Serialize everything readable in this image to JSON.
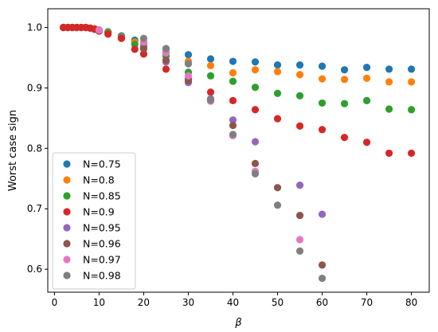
{
  "chart_data": {
    "type": "scatter",
    "xlabel": "β",
    "ylabel": "Worst case sign",
    "xlim": [
      -1.5,
      84
    ],
    "ylim": [
      0.562,
      1.031
    ],
    "x_ticks": [
      0,
      10,
      20,
      30,
      40,
      50,
      60,
      70,
      80
    ],
    "y_ticks": [
      0.6,
      0.7,
      0.8,
      0.9,
      1.0
    ],
    "x_tick_labels": [
      "0",
      "10",
      "20",
      "30",
      "40",
      "50",
      "60",
      "70",
      "80"
    ],
    "y_tick_labels": [
      "0.6",
      "0.7",
      "0.8",
      "0.9",
      "1.0"
    ],
    "legend_position": "lower-left",
    "grid": false,
    "series": [
      {
        "name": "N=0.75",
        "color": "#1f77b4",
        "points": [
          [
            2,
            1.0
          ],
          [
            3,
            1.0
          ],
          [
            4,
            1.0
          ],
          [
            5,
            1.0
          ],
          [
            6,
            1.0
          ],
          [
            7,
            1.0
          ],
          [
            8,
            0.999
          ],
          [
            9,
            0.998
          ],
          [
            10,
            0.996
          ],
          [
            12,
            0.993
          ],
          [
            15,
            0.986
          ],
          [
            18,
            0.979
          ],
          [
            20,
            0.975
          ],
          [
            25,
            0.965
          ],
          [
            30,
            0.955
          ],
          [
            35,
            0.948
          ],
          [
            40,
            0.944
          ],
          [
            45,
            0.943
          ],
          [
            50,
            0.938
          ],
          [
            55,
            0.938
          ],
          [
            60,
            0.936
          ],
          [
            65,
            0.93
          ],
          [
            70,
            0.934
          ],
          [
            75,
            0.931
          ],
          [
            80,
            0.931
          ]
        ]
      },
      {
        "name": "N=0.8",
        "color": "#ff7f0e",
        "points": [
          [
            2,
            1.0
          ],
          [
            3,
            1.0
          ],
          [
            4,
            1.0
          ],
          [
            5,
            1.0
          ],
          [
            6,
            1.0
          ],
          [
            7,
            1.0
          ],
          [
            8,
            0.999
          ],
          [
            9,
            0.998
          ],
          [
            10,
            0.995
          ],
          [
            12,
            0.992
          ],
          [
            15,
            0.984
          ],
          [
            18,
            0.976
          ],
          [
            20,
            0.971
          ],
          [
            25,
            0.959
          ],
          [
            30,
            0.944
          ],
          [
            35,
            0.937
          ],
          [
            40,
            0.925
          ],
          [
            45,
            0.93
          ],
          [
            50,
            0.927
          ],
          [
            55,
            0.922
          ],
          [
            60,
            0.915
          ],
          [
            65,
            0.914
          ],
          [
            70,
            0.916
          ],
          [
            75,
            0.91
          ],
          [
            80,
            0.91
          ]
        ]
      },
      {
        "name": "N=0.85",
        "color": "#2ca02c",
        "points": [
          [
            2,
            1.0
          ],
          [
            3,
            1.0
          ],
          [
            4,
            1.0
          ],
          [
            5,
            1.0
          ],
          [
            6,
            1.0
          ],
          [
            7,
            1.0
          ],
          [
            8,
            0.999
          ],
          [
            9,
            0.997
          ],
          [
            10,
            0.995
          ],
          [
            12,
            0.991
          ],
          [
            15,
            0.983
          ],
          [
            18,
            0.972
          ],
          [
            20,
            0.966
          ],
          [
            25,
            0.953
          ],
          [
            30,
            0.926
          ],
          [
            35,
            0.92
          ],
          [
            40,
            0.911
          ],
          [
            45,
            0.901
          ],
          [
            50,
            0.891
          ],
          [
            55,
            0.887
          ],
          [
            60,
            0.875
          ],
          [
            65,
            0.874
          ],
          [
            70,
            0.879
          ],
          [
            75,
            0.865
          ],
          [
            80,
            0.864
          ]
        ]
      },
      {
        "name": "N=0.9",
        "color": "#d62728",
        "points": [
          [
            2,
            1.0
          ],
          [
            3,
            1.0
          ],
          [
            4,
            1.0
          ],
          [
            5,
            1.0
          ],
          [
            6,
            1.0
          ],
          [
            7,
            1.0
          ],
          [
            8,
            0.999
          ],
          [
            9,
            0.997
          ],
          [
            10,
            0.994
          ],
          [
            12,
            0.989
          ],
          [
            15,
            0.982
          ],
          [
            18,
            0.964
          ],
          [
            20,
            0.956
          ],
          [
            25,
            0.931
          ],
          [
            30,
            0.915
          ],
          [
            35,
            0.893
          ],
          [
            40,
            0.879
          ],
          [
            45,
            0.864
          ],
          [
            50,
            0.849
          ],
          [
            55,
            0.837
          ],
          [
            60,
            0.831
          ],
          [
            65,
            0.818
          ],
          [
            70,
            0.81
          ],
          [
            75,
            0.792
          ],
          [
            80,
            0.792
          ]
        ]
      },
      {
        "name": "N=0.95",
        "color": "#9467bd",
        "points": [
          [
            10,
            0.995
          ],
          [
            20,
            0.968
          ],
          [
            25,
            0.943
          ],
          [
            30,
            0.909
          ],
          [
            35,
            0.882
          ],
          [
            40,
            0.847
          ],
          [
            45,
            0.811
          ],
          [
            55,
            0.739
          ],
          [
            60,
            0.691
          ]
        ]
      },
      {
        "name": "N=0.96",
        "color": "#8c564b",
        "points": [
          [
            10,
            0.995
          ],
          [
            20,
            0.965
          ],
          [
            25,
            0.946
          ],
          [
            30,
            0.912
          ],
          [
            35,
            0.88
          ],
          [
            40,
            0.838
          ],
          [
            45,
            0.775
          ],
          [
            50,
            0.735
          ],
          [
            55,
            0.689
          ],
          [
            60,
            0.607
          ]
        ]
      },
      {
        "name": "N=0.97",
        "color": "#e377c2",
        "points": [
          [
            10,
            0.996
          ],
          [
            20,
            0.976
          ],
          [
            25,
            0.958
          ],
          [
            30,
            0.92
          ],
          [
            35,
            0.878
          ],
          [
            40,
            0.821
          ],
          [
            45,
            0.762
          ],
          [
            55,
            0.649
          ]
        ]
      },
      {
        "name": "N=0.98",
        "color": "#7f7f7f",
        "points": [
          [
            20,
            0.982
          ],
          [
            25,
            0.965
          ],
          [
            30,
            0.94
          ],
          [
            35,
            0.88
          ],
          [
            40,
            0.823
          ],
          [
            45,
            0.758
          ],
          [
            50,
            0.706
          ],
          [
            55,
            0.63
          ],
          [
            60,
            0.585
          ]
        ]
      }
    ]
  }
}
